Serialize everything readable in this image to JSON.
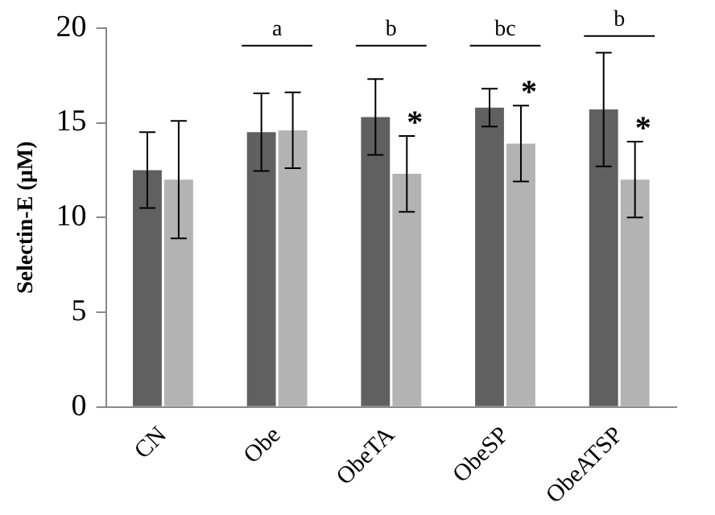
{
  "chart_data": {
    "type": "bar",
    "ylabel": "Selectin-E (µM)",
    "categories": [
      "CN",
      "Obe",
      "ObeTA",
      "ObeSP",
      "ObeATSP"
    ],
    "series": [
      {
        "color": "#606060",
        "values": [
          12.5,
          14.5,
          15.3,
          15.8,
          15.7
        ],
        "errors": [
          2.0,
          2.05,
          2.0,
          1.0,
          3.0
        ]
      },
      {
        "color": "#b3b3b3",
        "values": [
          12.0,
          14.6,
          12.3,
          13.9,
          12.0
        ],
        "errors": [
          3.1,
          2.0,
          2.0,
          2.0,
          2.0
        ],
        "value_labels": [
          null,
          null,
          "*",
          "*",
          "*"
        ]
      }
    ],
    "ylim": [
      0,
      20
    ],
    "yticks": [
      0,
      5,
      10,
      15,
      20
    ],
    "grid": false,
    "legend": false,
    "annotations": [
      "a",
      "b",
      "bc",
      "b"
    ]
  }
}
